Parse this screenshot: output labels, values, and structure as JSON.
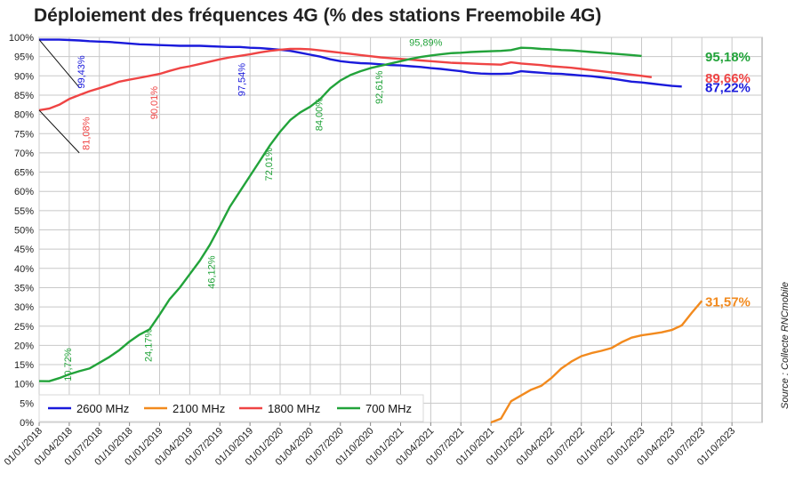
{
  "chart_data": {
    "type": "line",
    "title": "Déploiement des fréquences 4G (% des stations Freemobile 4G)",
    "source": "Source : Collecte RNCmobile",
    "ylim": [
      0,
      100
    ],
    "y_ticks": [
      "0%",
      "5%",
      "10%",
      "15%",
      "20%",
      "25%",
      "30%",
      "35%",
      "40%",
      "45%",
      "50%",
      "55%",
      "60%",
      "65%",
      "70%",
      "75%",
      "80%",
      "85%",
      "90%",
      "95%",
      "100%"
    ],
    "x_ticks": [
      "01/01/2018",
      "01/04/2018",
      "01/07/2018",
      "01/10/2018",
      "01/01/2019",
      "01/04/2019",
      "01/07/2019",
      "01/10/2019",
      "01/01/2020",
      "01/04/2020",
      "01/07/2020",
      "01/10/2020",
      "01/01/2021",
      "01/04/2021",
      "01/07/2021",
      "01/10/2021",
      "01/01/2022",
      "01/04/2022",
      "01/07/2022",
      "01/10/2022",
      "01/01/2023",
      "01/04/2023",
      "01/07/2023",
      "01/10/2023"
    ],
    "grid": true,
    "legend_position": "bottom-left",
    "series": [
      {
        "name": "2600 MHz",
        "color": "#1a1adb",
        "points": [
          [
            0,
            99.4
          ],
          [
            1,
            99.4
          ],
          [
            2,
            99.4
          ],
          [
            3,
            99.3
          ],
          [
            4,
            99.2
          ],
          [
            5,
            99.0
          ],
          [
            6,
            98.9
          ],
          [
            7,
            98.8
          ],
          [
            8,
            98.6
          ],
          [
            9,
            98.4
          ],
          [
            10,
            98.2
          ],
          [
            11,
            98.1
          ],
          [
            12,
            98.0
          ],
          [
            13,
            97.9
          ],
          [
            14,
            97.8
          ],
          [
            15,
            97.8
          ],
          [
            16,
            97.8
          ],
          [
            17,
            97.7
          ],
          [
            18,
            97.6
          ],
          [
            19,
            97.5
          ],
          [
            20,
            97.5
          ],
          [
            21,
            97.3
          ],
          [
            22,
            97.2
          ],
          [
            23,
            97.0
          ],
          [
            24,
            96.8
          ],
          [
            25,
            96.5
          ],
          [
            26,
            96.0
          ],
          [
            27,
            95.5
          ],
          [
            28,
            95.0
          ],
          [
            29,
            94.3
          ],
          [
            30,
            93.8
          ],
          [
            31,
            93.5
          ],
          [
            32,
            93.3
          ],
          [
            33,
            93.2
          ],
          [
            34,
            93.0
          ],
          [
            35,
            92.8
          ],
          [
            36,
            92.7
          ],
          [
            37,
            92.5
          ],
          [
            38,
            92.3
          ],
          [
            39,
            92.0
          ],
          [
            40,
            91.8
          ],
          [
            41,
            91.5
          ],
          [
            42,
            91.2
          ],
          [
            43,
            90.8
          ],
          [
            44,
            90.6
          ],
          [
            45,
            90.5
          ],
          [
            46,
            90.5
          ],
          [
            47,
            90.6
          ],
          [
            48,
            91.2
          ],
          [
            49,
            91.0
          ],
          [
            50,
            90.8
          ],
          [
            51,
            90.6
          ],
          [
            52,
            90.5
          ],
          [
            53,
            90.3
          ],
          [
            54,
            90.1
          ],
          [
            55,
            89.9
          ],
          [
            56,
            89.6
          ],
          [
            57,
            89.3
          ],
          [
            58,
            88.9
          ],
          [
            59,
            88.5
          ],
          [
            60,
            88.3
          ],
          [
            61,
            88.0
          ],
          [
            62,
            87.7
          ],
          [
            63,
            87.4
          ],
          [
            64,
            87.22
          ]
        ]
      },
      {
        "name": "2100 MHz",
        "color": "#f28a1e",
        "points": [
          [
            45,
            0.0
          ],
          [
            46,
            1.0
          ],
          [
            47,
            5.5
          ],
          [
            48,
            7.0
          ],
          [
            49,
            8.5
          ],
          [
            50,
            9.5
          ],
          [
            51,
            11.5
          ],
          [
            52,
            14.0
          ],
          [
            53,
            15.8
          ],
          [
            54,
            17.2
          ],
          [
            55,
            18.0
          ],
          [
            56,
            18.6
          ],
          [
            57,
            19.3
          ],
          [
            58,
            20.8
          ],
          [
            59,
            22.0
          ],
          [
            60,
            22.6
          ],
          [
            61,
            23.0
          ],
          [
            62,
            23.4
          ],
          [
            63,
            24.0
          ],
          [
            64,
            25.2
          ],
          [
            65,
            28.5
          ],
          [
            66,
            31.57
          ]
        ]
      },
      {
        "name": "1800 MHz",
        "color": "#ef4444",
        "points": [
          [
            0,
            81.08
          ],
          [
            1,
            81.5
          ],
          [
            2,
            82.5
          ],
          [
            3,
            84.0
          ],
          [
            4,
            85.0
          ],
          [
            5,
            86.0
          ],
          [
            6,
            86.8
          ],
          [
            7,
            87.6
          ],
          [
            8,
            88.5
          ],
          [
            9,
            89.0
          ],
          [
            10,
            89.5
          ],
          [
            11,
            90.0
          ],
          [
            12,
            90.5
          ],
          [
            13,
            91.3
          ],
          [
            14,
            92.0
          ],
          [
            15,
            92.5
          ],
          [
            16,
            93.1
          ],
          [
            17,
            93.7
          ],
          [
            18,
            94.3
          ],
          [
            19,
            94.8
          ],
          [
            20,
            95.2
          ],
          [
            21,
            95.6
          ],
          [
            22,
            96.1
          ],
          [
            23,
            96.5
          ],
          [
            24,
            96.8
          ],
          [
            25,
            97.0
          ],
          [
            26,
            97.0
          ],
          [
            27,
            96.9
          ],
          [
            28,
            96.6
          ],
          [
            29,
            96.3
          ],
          [
            30,
            96.0
          ],
          [
            31,
            95.7
          ],
          [
            32,
            95.4
          ],
          [
            33,
            95.1
          ],
          [
            34,
            94.8
          ],
          [
            35,
            94.6
          ],
          [
            36,
            94.4
          ],
          [
            37,
            94.2
          ],
          [
            38,
            94.0
          ],
          [
            39,
            93.8
          ],
          [
            40,
            93.6
          ],
          [
            41,
            93.4
          ],
          [
            42,
            93.3
          ],
          [
            43,
            93.2
          ],
          [
            44,
            93.1
          ],
          [
            45,
            93.0
          ],
          [
            46,
            92.9
          ],
          [
            47,
            93.5
          ],
          [
            48,
            93.2
          ],
          [
            49,
            93.0
          ],
          [
            50,
            92.8
          ],
          [
            51,
            92.5
          ],
          [
            52,
            92.3
          ],
          [
            53,
            92.1
          ],
          [
            54,
            91.8
          ],
          [
            55,
            91.5
          ],
          [
            56,
            91.2
          ],
          [
            57,
            90.9
          ],
          [
            58,
            90.6
          ],
          [
            59,
            90.3
          ],
          [
            60,
            90.0
          ],
          [
            61,
            89.66
          ]
        ]
      },
      {
        "name": "700 MHz",
        "color": "#22a33a",
        "points": [
          [
            0,
            10.72
          ],
          [
            1,
            10.7
          ],
          [
            2,
            11.5
          ],
          [
            3,
            12.5
          ],
          [
            4,
            13.3
          ],
          [
            5,
            14.0
          ],
          [
            6,
            15.5
          ],
          [
            7,
            17.0
          ],
          [
            8,
            18.8
          ],
          [
            9,
            21.0
          ],
          [
            10,
            22.8
          ],
          [
            11,
            24.17
          ],
          [
            12,
            28.0
          ],
          [
            13,
            32.0
          ],
          [
            14,
            35.0
          ],
          [
            15,
            38.5
          ],
          [
            16,
            42.0
          ],
          [
            17,
            46.12
          ],
          [
            18,
            51.0
          ],
          [
            19,
            56.0
          ],
          [
            20,
            60.0
          ],
          [
            21,
            64.0
          ],
          [
            22,
            68.0
          ],
          [
            23,
            72.01
          ],
          [
            24,
            75.5
          ],
          [
            25,
            78.5
          ],
          [
            26,
            80.5
          ],
          [
            27,
            82.0
          ],
          [
            28,
            84.0
          ],
          [
            29,
            86.8
          ],
          [
            30,
            88.8
          ],
          [
            31,
            90.2
          ],
          [
            32,
            91.2
          ],
          [
            33,
            92.0
          ],
          [
            34,
            92.61
          ],
          [
            35,
            93.2
          ],
          [
            36,
            93.8
          ],
          [
            37,
            94.4
          ],
          [
            38,
            94.9
          ],
          [
            39,
            95.3
          ],
          [
            40,
            95.6
          ],
          [
            41,
            95.89
          ],
          [
            42,
            96.0
          ],
          [
            43,
            96.2
          ],
          [
            44,
            96.3
          ],
          [
            45,
            96.4
          ],
          [
            46,
            96.5
          ],
          [
            47,
            96.7
          ],
          [
            48,
            97.3
          ],
          [
            49,
            97.2
          ],
          [
            50,
            97.0
          ],
          [
            51,
            96.9
          ],
          [
            52,
            96.7
          ],
          [
            53,
            96.6
          ],
          [
            54,
            96.4
          ],
          [
            55,
            96.2
          ],
          [
            56,
            96.0
          ],
          [
            57,
            95.8
          ],
          [
            58,
            95.6
          ],
          [
            59,
            95.4
          ],
          [
            60,
            95.18
          ]
        ]
      }
    ],
    "annotations": [
      {
        "text": "99,43%",
        "color": "#1a1adb",
        "x": 4.5,
        "y": 91,
        "lead": [
          [
            0,
            99.4
          ],
          [
            4,
            87
          ]
        ]
      },
      {
        "text": "81,08%",
        "color": "#ef4444",
        "x": 5.0,
        "y": 75,
        "lead": [
          [
            0,
            81.08
          ],
          [
            4,
            70
          ]
        ]
      },
      {
        "text": "10,72%",
        "color": "#22a33a",
        "x": 3.2,
        "y": 15,
        "lead": null
      },
      {
        "text": "24,17%",
        "color": "#22a33a",
        "x": 11.2,
        "y": 20,
        "lead": null
      },
      {
        "text": "46,12%",
        "color": "#22a33a",
        "x": 17.5,
        "y": 39,
        "lead": null
      },
      {
        "text": "72,01%",
        "color": "#22a33a",
        "x": 23.2,
        "y": 67,
        "lead": null
      },
      {
        "text": "84,00%",
        "color": "#22a33a",
        "x": 28.2,
        "y": 80,
        "lead": null
      },
      {
        "text": "92,61%",
        "color": "#22a33a",
        "x": 34.2,
        "y": 87,
        "lead": null
      },
      {
        "text": "95,89%",
        "color": "#22a33a",
        "x": 38.5,
        "y": 97.8,
        "lead": null,
        "horizontal": true
      },
      {
        "text": "90,01%",
        "color": "#ef4444",
        "x": 11.8,
        "y": 83,
        "lead": null
      },
      {
        "text": "97,54%",
        "color": "#1a1adb",
        "x": 20.5,
        "y": 89,
        "lead": null
      }
    ],
    "end_labels": [
      {
        "text": "95,18%",
        "color": "#22a33a",
        "y": 95.18
      },
      {
        "text": "89,66%",
        "color": "#ef4444",
        "y": 89.66
      },
      {
        "text": "87,22%",
        "color": "#1a1adb",
        "y": 87.22
      },
      {
        "text": "31,57%",
        "color": "#f28a1e",
        "y": 31.57
      }
    ]
  }
}
